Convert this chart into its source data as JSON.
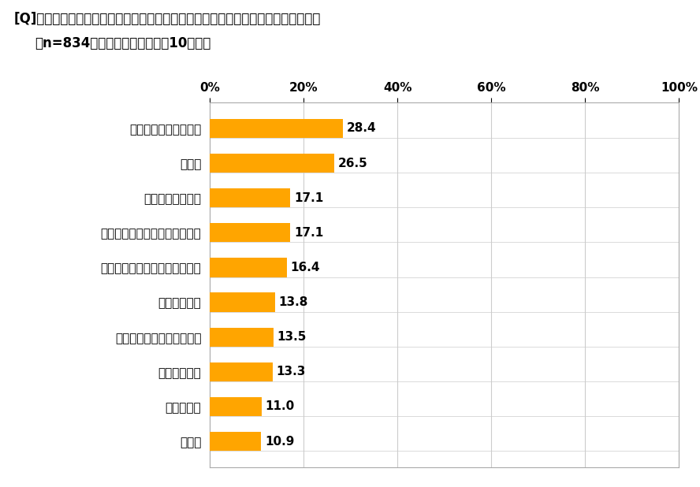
{
  "title_line1": "[Q]作ってみたい、作り方を知りたいと思う韓国料理のメニューを教えてください。",
  "title_line2": "（n=834・複数回答のうち上位10項目）",
  "categories": [
    "参鶏湯（サムゲタン）",
    "キンパ",
    "ヤンニョムチキン",
    "タッカルビ・チーズタッカルビ",
    "チュモッパ（韓国風おにぎり）",
    "タッカンマリ",
    "チュクミ（イイダコ炒め）",
    "カムジャタン",
    "スンドゥブ",
    "クッパ"
  ],
  "values": [
    28.4,
    26.5,
    17.1,
    17.1,
    16.4,
    13.8,
    13.5,
    13.3,
    11.0,
    10.9
  ],
  "bar_color": "#FFA500",
  "background_color": "#FFFFFF",
  "xlim": [
    0,
    100
  ],
  "xticks": [
    0,
    20,
    40,
    60,
    80,
    100
  ],
  "xticklabels": [
    "0%",
    "20%",
    "40%",
    "60%",
    "80%",
    "100%"
  ],
  "title_fontsize": 12,
  "label_fontsize": 11,
  "value_fontsize": 11,
  "tick_fontsize": 11,
  "bar_height": 0.55,
  "grid_color": "#CCCCCC",
  "separator_color": "#CCCCCC",
  "spine_color": "#AAAAAA"
}
